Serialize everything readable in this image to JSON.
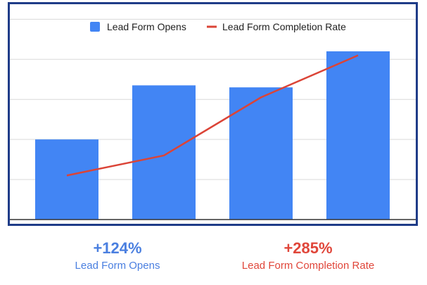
{
  "chart_data": {
    "type": "bar",
    "categories": [
      "",
      "",
      "",
      ""
    ],
    "series": [
      {
        "name": "Lead Form Opens",
        "type": "bar",
        "values": [
          2.0,
          3.35,
          3.3,
          4.2
        ],
        "color": "#4285f4"
      },
      {
        "name": "Lead Form Completion Rate",
        "type": "line",
        "values": [
          1.1,
          1.6,
          3.05,
          4.1
        ],
        "color": "#db4437"
      }
    ],
    "ylim": [
      0,
      5.2
    ],
    "grid": true,
    "legend": "top"
  },
  "stats": [
    {
      "value": "+124%",
      "label": "Lead Form Opens",
      "color": "#4a7fe0"
    },
    {
      "value": "+285%",
      "label": "Lead Form Completion Rate",
      "color": "#e0463a"
    }
  ]
}
